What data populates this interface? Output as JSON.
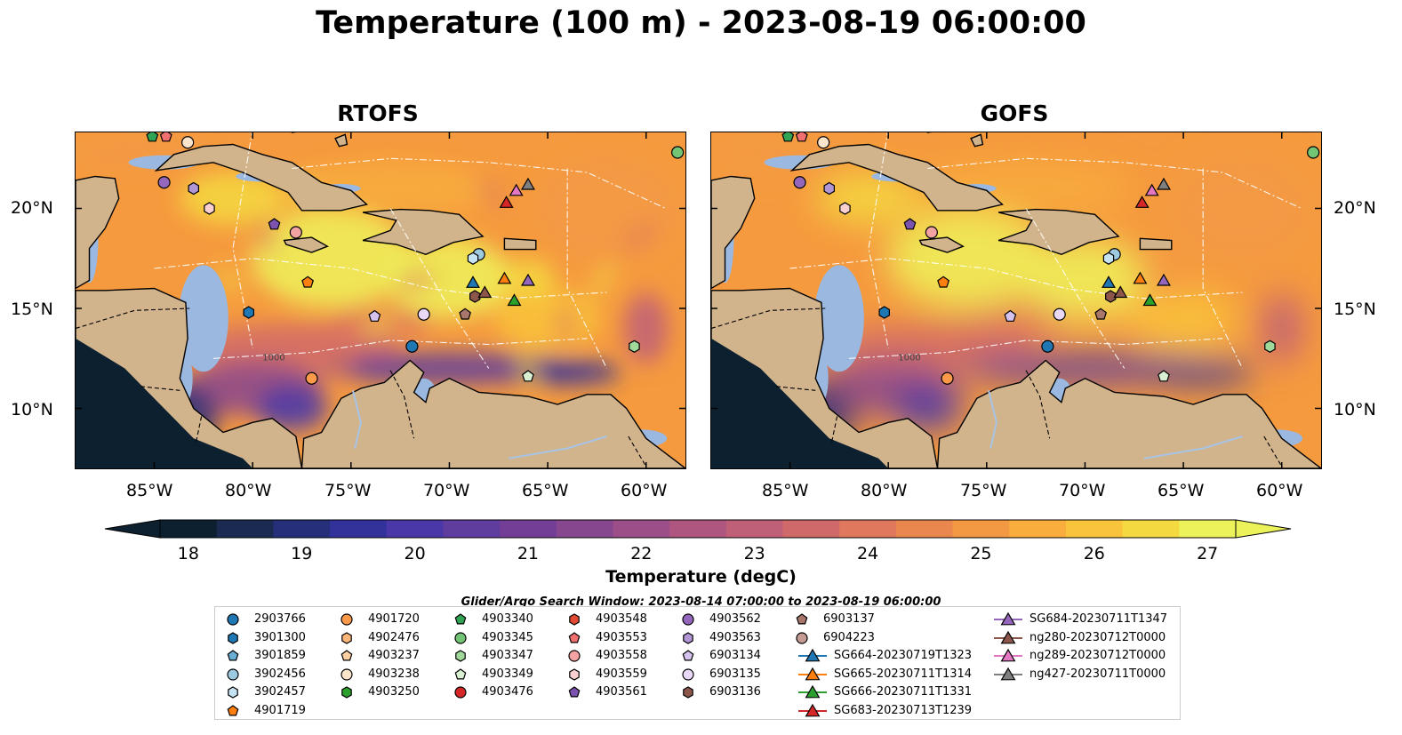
{
  "title": "Temperature (100 m) - 2023-08-19 06:00:00",
  "panels": [
    {
      "title": "RTOFS"
    },
    {
      "title": "GOFS"
    }
  ],
  "contour_labels": [
    "1000"
  ],
  "axes": {
    "lon_ticks": [
      "85°W",
      "80°W",
      "75°W",
      "70°W",
      "65°W",
      "60°W"
    ],
    "lat_ticks": [
      "20°N",
      "15°N",
      "10°N"
    ]
  },
  "colorbar": {
    "label": "Temperature (degC)",
    "ticks": [
      "18",
      "19",
      "20",
      "21",
      "22",
      "23",
      "24",
      "25",
      "26",
      "27"
    ],
    "colors": [
      "#0c2030",
      "#1a2a50",
      "#252f7a",
      "#33329a",
      "#4a38a8",
      "#5e3d9e",
      "#733f96",
      "#87478e",
      "#9b4e87",
      "#ae5680",
      "#c05f78",
      "#d06a6a",
      "#df785c",
      "#ea874e",
      "#f39944",
      "#f8ad3d",
      "#f9c33b",
      "#f5d941",
      "#ecf25a"
    ]
  },
  "legend": {
    "title": "Glider/Argo Search Window: 2023-08-14 07:00:00 to 2023-08-19 06:00:00",
    "items": [
      {
        "label": "2903766",
        "color": "#1f77b4",
        "shape": "circle"
      },
      {
        "label": "3901300",
        "color": "#1f77b4",
        "shape": "hexagon"
      },
      {
        "label": "3901859",
        "color": "#6aaed6",
        "shape": "pentagon"
      },
      {
        "label": "3902456",
        "color": "#9ecae1",
        "shape": "circle"
      },
      {
        "label": "3902457",
        "color": "#c6e3f3",
        "shape": "hexagon"
      },
      {
        "label": "4901719",
        "color": "#ff7f0e",
        "shape": "pentagon"
      },
      {
        "label": "4901720",
        "color": "#fd9a4a",
        "shape": "circle"
      },
      {
        "label": "4902476",
        "color": "#fdb679",
        "shape": "hexagon"
      },
      {
        "label": "4903237",
        "color": "#fdd0a2",
        "shape": "pentagon"
      },
      {
        "label": "4903238",
        "color": "#fde5cc",
        "shape": "circle"
      },
      {
        "label": "4903250",
        "color": "#2ca02c",
        "shape": "hexagon"
      },
      {
        "label": "4903340",
        "color": "#31a354",
        "shape": "pentagon"
      },
      {
        "label": "4903345",
        "color": "#74c476",
        "shape": "circle"
      },
      {
        "label": "4903347",
        "color": "#a1d99b",
        "shape": "hexagon"
      },
      {
        "label": "4903349",
        "color": "#d9f0d3",
        "shape": "pentagon"
      },
      {
        "label": "4903476",
        "color": "#d62728",
        "shape": "circle"
      },
      {
        "label": "4903548",
        "color": "#e34a33",
        "shape": "hexagon"
      },
      {
        "label": "4903553",
        "color": "#f07070",
        "shape": "pentagon"
      },
      {
        "label": "4903558",
        "color": "#f4a3a3",
        "shape": "circle"
      },
      {
        "label": "4903559",
        "color": "#fbd0d0",
        "shape": "hexagon"
      },
      {
        "label": "4903561",
        "color": "#7b52ae",
        "shape": "pentagon"
      },
      {
        "label": "4903562",
        "color": "#9467bd",
        "shape": "circle"
      },
      {
        "label": "4903563",
        "color": "#b196d6",
        "shape": "hexagon"
      },
      {
        "label": "6903134",
        "color": "#d5c2ee",
        "shape": "pentagon"
      },
      {
        "label": "6903135",
        "color": "#ead8f7",
        "shape": "circle"
      },
      {
        "label": "6903136",
        "color": "#8c564b",
        "shape": "hexagon"
      },
      {
        "label": "6903137",
        "color": "#a9766c",
        "shape": "pentagon"
      },
      {
        "label": "6904223",
        "color": "#c49c94",
        "shape": "circle"
      },
      {
        "label": "SG664-20230719T1323",
        "color": "#1f77b4",
        "shape": "triangle-line"
      },
      {
        "label": "SG665-20230711T1314",
        "color": "#ff7f0e",
        "shape": "triangle-line"
      },
      {
        "label": "SG666-20230711T1331",
        "color": "#2ca02c",
        "shape": "triangle-line"
      },
      {
        "label": "SG683-20230713T1239",
        "color": "#d62728",
        "shape": "triangle-line"
      },
      {
        "label": "SG684-20230711T1347",
        "color": "#9467bd",
        "shape": "triangle-line"
      },
      {
        "label": "ng280-20230712T0000",
        "color": "#8c564b",
        "shape": "triangle-line"
      },
      {
        "label": "ng289-20230712T0000",
        "color": "#e377c2",
        "shape": "triangle-line"
      },
      {
        "label": "ng427-20230711T0000",
        "color": "#7f7f7f",
        "shape": "triangle-line"
      }
    ]
  },
  "markers": [
    {
      "id": "4903340",
      "lon": -85.1,
      "lat": 23.6,
      "color": "#31a354",
      "shape": "pentagon"
    },
    {
      "id": "4903553",
      "lon": -84.4,
      "lat": 23.6,
      "color": "#f07070",
      "shape": "pentagon"
    },
    {
      "id": "4903238",
      "lon": -83.3,
      "lat": 23.3,
      "color": "#fde5cc",
      "shape": "circle"
    },
    {
      "id": "4903562",
      "lon": -84.5,
      "lat": 21.3,
      "color": "#9467bd",
      "shape": "circle"
    },
    {
      "id": "4903563",
      "lon": -83.0,
      "lat": 21.0,
      "color": "#b196d6",
      "shape": "hexagon"
    },
    {
      "id": "4903559",
      "lon": -82.2,
      "lat": 20.0,
      "color": "#fbd0d0",
      "shape": "hexagon"
    },
    {
      "id": "4903561",
      "lon": -78.9,
      "lat": 19.2,
      "color": "#7b52ae",
      "shape": "pentagon"
    },
    {
      "id": "4903558",
      "lon": -77.8,
      "lat": 18.8,
      "color": "#f4a3a3",
      "shape": "circle"
    },
    {
      "id": "4901719",
      "lon": -77.2,
      "lat": 16.3,
      "color": "#ff7f0e",
      "shape": "pentagon"
    },
    {
      "id": "3901300",
      "lon": -80.2,
      "lat": 14.8,
      "color": "#1f77b4",
      "shape": "hexagon"
    },
    {
      "id": "6903134",
      "lon": -73.8,
      "lat": 14.6,
      "color": "#d5c2ee",
      "shape": "pentagon"
    },
    {
      "id": "6903135",
      "lon": -71.3,
      "lat": 14.7,
      "color": "#ead8f7",
      "shape": "circle"
    },
    {
      "id": "6903137",
      "lon": -69.2,
      "lat": 14.7,
      "color": "#a9766c",
      "shape": "pentagon"
    },
    {
      "id": "2903766",
      "lon": -71.9,
      "lat": 13.1,
      "color": "#1f77b4",
      "shape": "circle"
    },
    {
      "id": "4901720",
      "lon": -77.0,
      "lat": 11.5,
      "color": "#fd9a4a",
      "shape": "circle"
    },
    {
      "id": "4903349",
      "lon": -66.0,
      "lat": 11.6,
      "color": "#d9f0d3",
      "shape": "pentagon"
    },
    {
      "id": "4903347",
      "lon": -60.6,
      "lat": 13.1,
      "color": "#a1d99b",
      "shape": "hexagon"
    },
    {
      "id": "4903345",
      "lon": -58.4,
      "lat": 22.8,
      "color": "#74c476",
      "shape": "circle"
    },
    {
      "id": "3902456",
      "lon": -68.5,
      "lat": 17.7,
      "color": "#9ecae1",
      "shape": "circle"
    },
    {
      "id": "3902457",
      "lon": -68.8,
      "lat": 17.5,
      "color": "#c6e3f3",
      "shape": "hexagon"
    },
    {
      "id": "6903136",
      "lon": -68.7,
      "lat": 15.6,
      "color": "#8c564b",
      "shape": "hexagon"
    },
    {
      "id": "SG664-20230719T1323",
      "lon": -68.8,
      "lat": 16.3,
      "color": "#1f77b4",
      "shape": "triangle"
    },
    {
      "id": "ng280-20230712T0000",
      "lon": -68.2,
      "lat": 15.8,
      "color": "#8c564b",
      "shape": "triangle"
    },
    {
      "id": "SG665-20230711T1314",
      "lon": -67.2,
      "lat": 16.5,
      "color": "#ff7f0e",
      "shape": "triangle"
    },
    {
      "id": "SG684-20230711T1347",
      "lon": -66.0,
      "lat": 16.4,
      "color": "#9467bd",
      "shape": "triangle"
    },
    {
      "id": "SG666-20230711T1331",
      "lon": -66.7,
      "lat": 15.4,
      "color": "#2ca02c",
      "shape": "triangle"
    },
    {
      "id": "SG683-20230713T1239",
      "lon": -67.1,
      "lat": 20.3,
      "color": "#d62728",
      "shape": "triangle"
    },
    {
      "id": "ng289-20230712T0000",
      "lon": -66.6,
      "lat": 20.9,
      "color": "#e377c2",
      "shape": "triangle"
    },
    {
      "id": "ng427-20230711T0000",
      "lon": -66.0,
      "lat": 21.2,
      "color": "#7f7f7f",
      "shape": "triangle"
    }
  ],
  "map_extent": {
    "lon": [
      -89.0,
      -58.0
    ],
    "lat": [
      7.0,
      23.8
    ]
  }
}
